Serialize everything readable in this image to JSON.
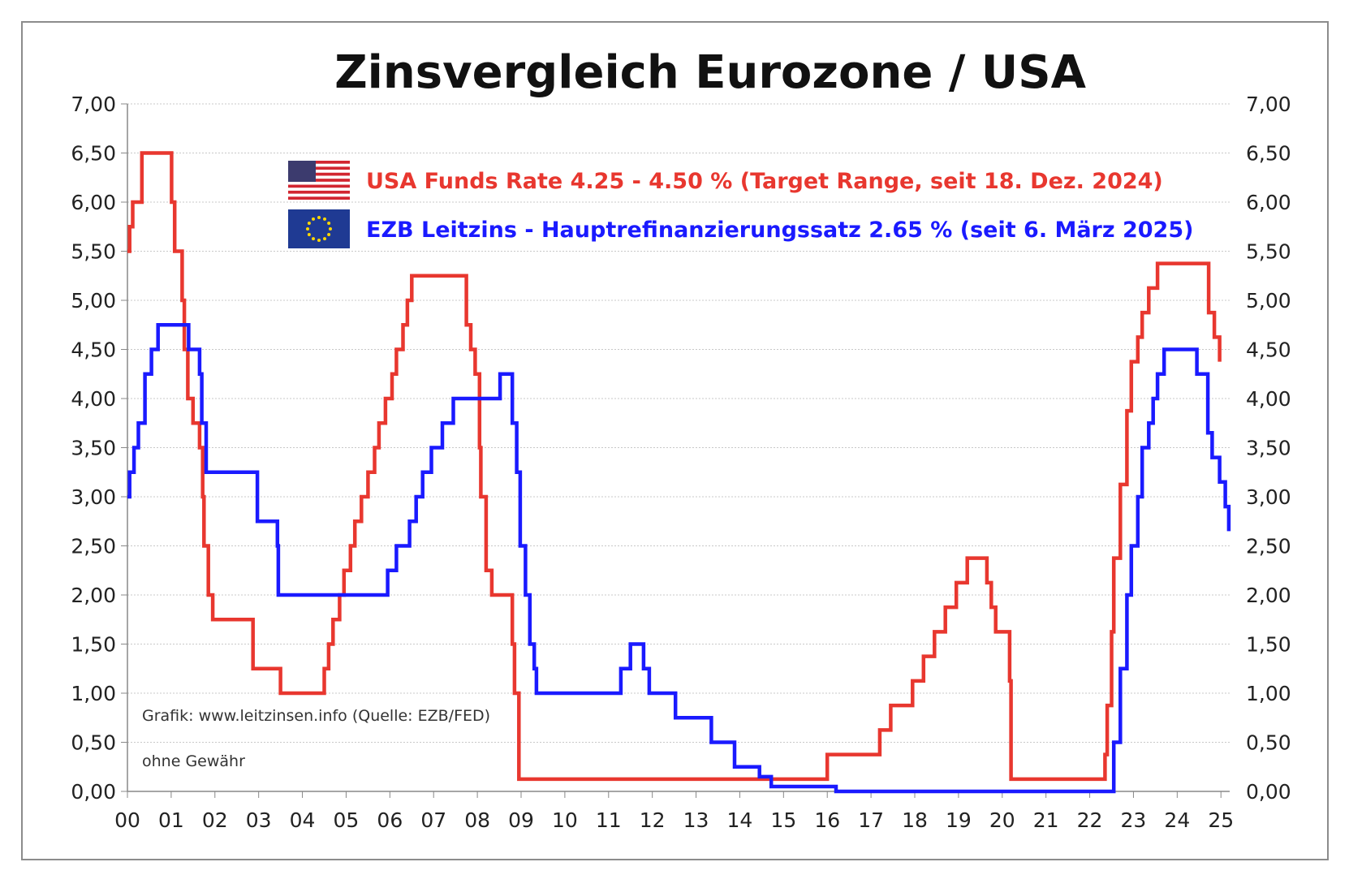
{
  "chart_data": {
    "type": "line",
    "title": "Zinsvergleich Eurozone / USA",
    "x_tick_labels": [
      "00",
      "01",
      "02",
      "03",
      "04",
      "05",
      "06",
      "07",
      "08",
      "09",
      "10",
      "11",
      "12",
      "13",
      "14",
      "15",
      "16",
      "17",
      "18",
      "19",
      "20",
      "21",
      "22",
      "23",
      "24",
      "25"
    ],
    "y_tick_labels": [
      "0,00",
      "0,50",
      "1,00",
      "1,50",
      "2,00",
      "2,50",
      "3,00",
      "3,50",
      "4,00",
      "4,50",
      "5,00",
      "5,50",
      "6,00",
      "6,50",
      "7,00"
    ],
    "xlim": [
      2000,
      2025.2
    ],
    "ylim": [
      0,
      7
    ],
    "grid": true,
    "step": true,
    "series": [
      {
        "name": "USA Funds Rate 4.25 - 4.50 % (Target Range, seit 18. Dez. 2024)",
        "color": "#e8372f",
        "icon": "us-flag-icon",
        "points": [
          [
            2000.0,
            5.5
          ],
          [
            2000.05,
            5.75
          ],
          [
            2000.12,
            6.0
          ],
          [
            2000.33,
            6.5
          ],
          [
            2001.0,
            6.5
          ],
          [
            2001.01,
            6.0
          ],
          [
            2001.08,
            5.5
          ],
          [
            2001.25,
            5.0
          ],
          [
            2001.3,
            4.5
          ],
          [
            2001.38,
            4.0
          ],
          [
            2001.5,
            3.75
          ],
          [
            2001.65,
            3.5
          ],
          [
            2001.72,
            3.0
          ],
          [
            2001.75,
            2.5
          ],
          [
            2001.85,
            2.0
          ],
          [
            2001.95,
            1.75
          ],
          [
            2002.85,
            1.75
          ],
          [
            2002.87,
            1.25
          ],
          [
            2003.48,
            1.25
          ],
          [
            2003.5,
            1.0
          ],
          [
            2004.48,
            1.0
          ],
          [
            2004.5,
            1.25
          ],
          [
            2004.6,
            1.5
          ],
          [
            2004.7,
            1.75
          ],
          [
            2004.85,
            2.0
          ],
          [
            2004.95,
            2.25
          ],
          [
            2005.1,
            2.5
          ],
          [
            2005.2,
            2.75
          ],
          [
            2005.35,
            3.0
          ],
          [
            2005.5,
            3.25
          ],
          [
            2005.65,
            3.5
          ],
          [
            2005.75,
            3.75
          ],
          [
            2005.9,
            4.0
          ],
          [
            2006.05,
            4.25
          ],
          [
            2006.15,
            4.5
          ],
          [
            2006.3,
            4.75
          ],
          [
            2006.4,
            5.0
          ],
          [
            2006.5,
            5.25
          ],
          [
            2007.7,
            5.25
          ],
          [
            2007.75,
            4.75
          ],
          [
            2007.85,
            4.5
          ],
          [
            2007.95,
            4.25
          ],
          [
            2008.05,
            3.5
          ],
          [
            2008.08,
            3.0
          ],
          [
            2008.2,
            2.25
          ],
          [
            2008.33,
            2.0
          ],
          [
            2008.78,
            2.0
          ],
          [
            2008.8,
            1.5
          ],
          [
            2008.85,
            1.0
          ],
          [
            2008.95,
            0.125
          ],
          [
            2015.95,
            0.125
          ],
          [
            2016.0,
            0.375
          ],
          [
            2016.95,
            0.375
          ],
          [
            2017.2,
            0.625
          ],
          [
            2017.45,
            0.875
          ],
          [
            2017.95,
            1.125
          ],
          [
            2018.2,
            1.375
          ],
          [
            2018.45,
            1.625
          ],
          [
            2018.7,
            1.875
          ],
          [
            2018.95,
            2.125
          ],
          [
            2019.2,
            2.375
          ],
          [
            2019.58,
            2.375
          ],
          [
            2019.65,
            2.125
          ],
          [
            2019.75,
            1.875
          ],
          [
            2019.85,
            1.625
          ],
          [
            2020.15,
            1.625
          ],
          [
            2020.17,
            1.125
          ],
          [
            2020.2,
            0.125
          ],
          [
            2022.2,
            0.125
          ],
          [
            2022.35,
            0.375
          ],
          [
            2022.4,
            0.875
          ],
          [
            2022.5,
            1.625
          ],
          [
            2022.55,
            2.375
          ],
          [
            2022.7,
            3.125
          ],
          [
            2022.85,
            3.875
          ],
          [
            2022.95,
            4.375
          ],
          [
            2023.1,
            4.625
          ],
          [
            2023.2,
            4.875
          ],
          [
            2023.35,
            5.125
          ],
          [
            2023.55,
            5.375
          ],
          [
            2024.7,
            5.375
          ],
          [
            2024.72,
            4.875
          ],
          [
            2024.85,
            4.625
          ],
          [
            2024.97,
            4.375
          ]
        ]
      },
      {
        "name": "EZB Leitzins - Hauptrefinanzierungssatz  2.65 % (seit 6. März 2025)",
        "color": "#1a1aff",
        "icon": "eu-flag-icon",
        "points": [
          [
            2000.0,
            3.0
          ],
          [
            2000.05,
            3.25
          ],
          [
            2000.15,
            3.5
          ],
          [
            2000.25,
            3.75
          ],
          [
            2000.4,
            4.25
          ],
          [
            2000.55,
            4.5
          ],
          [
            2000.7,
            4.75
          ],
          [
            2001.35,
            4.75
          ],
          [
            2001.4,
            4.5
          ],
          [
            2001.65,
            4.25
          ],
          [
            2001.7,
            3.75
          ],
          [
            2001.8,
            3.25
          ],
          [
            2002.95,
            3.25
          ],
          [
            2002.97,
            2.75
          ],
          [
            2003.2,
            2.75
          ],
          [
            2003.43,
            2.5
          ],
          [
            2003.45,
            2.0
          ],
          [
            2005.9,
            2.0
          ],
          [
            2005.95,
            2.25
          ],
          [
            2006.15,
            2.5
          ],
          [
            2006.45,
            2.75
          ],
          [
            2006.6,
            3.0
          ],
          [
            2006.75,
            3.25
          ],
          [
            2006.95,
            3.5
          ],
          [
            2007.2,
            3.75
          ],
          [
            2007.45,
            4.0
          ],
          [
            2008.5,
            4.0
          ],
          [
            2008.52,
            4.25
          ],
          [
            2008.75,
            4.25
          ],
          [
            2008.8,
            3.75
          ],
          [
            2008.9,
            3.25
          ],
          [
            2008.98,
            2.5
          ],
          [
            2009.1,
            2.0
          ],
          [
            2009.2,
            1.5
          ],
          [
            2009.3,
            1.25
          ],
          [
            2009.35,
            1.0
          ],
          [
            2011.25,
            1.0
          ],
          [
            2011.28,
            1.25
          ],
          [
            2011.5,
            1.5
          ],
          [
            2011.8,
            1.25
          ],
          [
            2011.93,
            1.0
          ],
          [
            2012.5,
            1.0
          ],
          [
            2012.53,
            0.75
          ],
          [
            2013.33,
            0.75
          ],
          [
            2013.35,
            0.5
          ],
          [
            2013.85,
            0.5
          ],
          [
            2013.88,
            0.25
          ],
          [
            2014.4,
            0.25
          ],
          [
            2014.45,
            0.15
          ],
          [
            2014.7,
            0.15
          ],
          [
            2014.72,
            0.05
          ],
          [
            2016.18,
            0.05
          ],
          [
            2016.2,
            0.0
          ],
          [
            2022.53,
            0.0
          ],
          [
            2022.55,
            0.5
          ],
          [
            2022.7,
            1.25
          ],
          [
            2022.85,
            2.0
          ],
          [
            2022.95,
            2.5
          ],
          [
            2023.1,
            3.0
          ],
          [
            2023.2,
            3.5
          ],
          [
            2023.35,
            3.75
          ],
          [
            2023.45,
            4.0
          ],
          [
            2023.55,
            4.25
          ],
          [
            2023.7,
            4.5
          ],
          [
            2024.42,
            4.5
          ],
          [
            2024.45,
            4.25
          ],
          [
            2024.7,
            3.65
          ],
          [
            2024.8,
            3.4
          ],
          [
            2024.97,
            3.15
          ],
          [
            2025.1,
            2.9
          ],
          [
            2025.18,
            2.65
          ]
        ]
      }
    ],
    "annotations": [
      "Grafik: www.leitzinsen.info (Quelle: EZB/FED)",
      "ohne Gewähr"
    ]
  }
}
